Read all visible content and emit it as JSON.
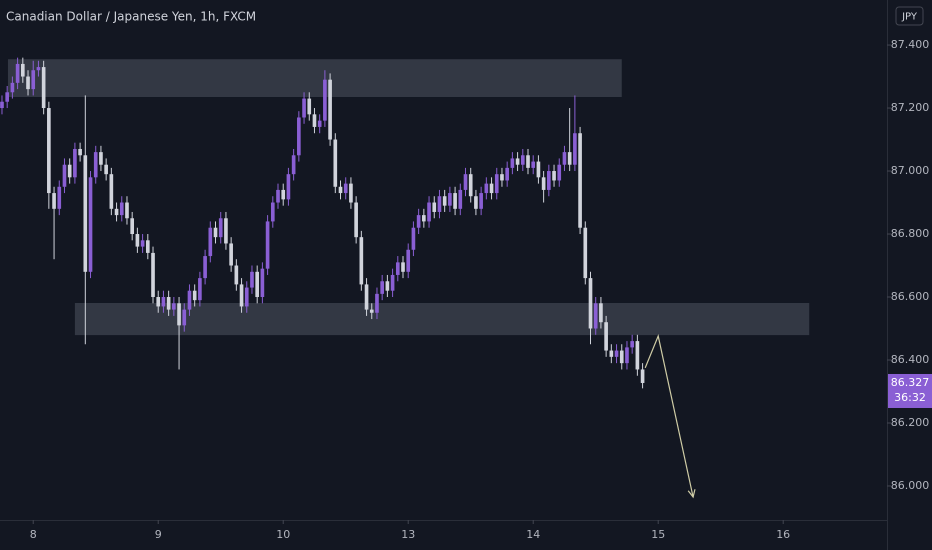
{
  "chart_data": {
    "type": "candlestick",
    "title": "Canadian Dollar / Japanese Yen, 1h, FXCM",
    "currency": "JPY",
    "countdown": "36:32",
    "up_color": "#8a5fd4",
    "down_color": "#d1d4dc",
    "zone_color": "#3a3e4a",
    "arrow_color": "#cfcca6",
    "xlim": [
      -0.38,
      169.93
    ],
    "ylim": [
      85.892,
      87.543
    ],
    "xticks": [
      {
        "value": 6,
        "label": "8"
      },
      {
        "value": 30,
        "label": "9"
      },
      {
        "value": 54,
        "label": "10"
      },
      {
        "value": 78,
        "label": "13"
      },
      {
        "value": 102,
        "label": "14"
      },
      {
        "value": 126,
        "label": "15"
      },
      {
        "value": 150,
        "label": "16"
      }
    ],
    "yticks": [
      {
        "value": 87.4,
        "label": "87.400"
      },
      {
        "value": 87.2,
        "label": "87.200"
      },
      {
        "value": 87.0,
        "label": "87.000"
      },
      {
        "value": 86.8,
        "label": "86.800"
      },
      {
        "value": 86.6,
        "label": "86.600"
      },
      {
        "value": 86.4,
        "label": "86.400"
      },
      {
        "value": 86.2,
        "label": "86.200"
      },
      {
        "value": 86.0,
        "label": "86.000"
      }
    ],
    "zones": [
      {
        "start": 1.15,
        "end": 119,
        "top": 87.355,
        "bottom": 87.235
      },
      {
        "start": 14,
        "end": 155,
        "top": 86.581,
        "bottom": 86.479
      }
    ],
    "arrow": {
      "x": [
        123.5,
        126,
        132.7
      ],
      "y": [
        86.375,
        86.476,
        85.965
      ]
    },
    "candles": [
      [
        87.2,
        87.24,
        87.18,
        87.22
      ],
      [
        87.22,
        87.27,
        87.2,
        87.25
      ],
      [
        87.25,
        87.3,
        87.23,
        87.28
      ],
      [
        87.28,
        87.36,
        87.26,
        87.34
      ],
      [
        87.34,
        87.36,
        87.28,
        87.3
      ],
      [
        87.3,
        87.32,
        87.24,
        87.26
      ],
      [
        87.26,
        87.35,
        87.24,
        87.32
      ],
      [
        87.32,
        87.35,
        87.3,
        87.33
      ],
      [
        87.33,
        87.35,
        87.18,
        87.2
      ],
      [
        87.2,
        87.22,
        86.88,
        86.93
      ],
      [
        86.93,
        86.95,
        86.72,
        86.88
      ],
      [
        86.88,
        86.97,
        86.86,
        86.95
      ],
      [
        86.95,
        87.04,
        86.93,
        87.02
      ],
      [
        87.02,
        87.04,
        86.96,
        86.98
      ],
      [
        86.98,
        87.09,
        86.96,
        87.07
      ],
      [
        87.07,
        87.09,
        87.03,
        87.05
      ],
      [
        87.05,
        87.24,
        86.45,
        86.68
      ],
      [
        86.68,
        87.0,
        86.66,
        86.98
      ],
      [
        86.98,
        87.08,
        86.96,
        87.06
      ],
      [
        87.06,
        87.08,
        87.0,
        87.02
      ],
      [
        87.02,
        87.04,
        86.97,
        86.99
      ],
      [
        86.99,
        87.01,
        86.86,
        86.88
      ],
      [
        86.88,
        86.9,
        86.84,
        86.86
      ],
      [
        86.86,
        86.92,
        86.84,
        86.9
      ],
      [
        86.9,
        86.92,
        86.83,
        86.85
      ],
      [
        86.85,
        86.87,
        86.78,
        86.8
      ],
      [
        86.8,
        86.82,
        86.74,
        86.76
      ],
      [
        86.76,
        86.8,
        86.74,
        86.78
      ],
      [
        86.78,
        86.8,
        86.72,
        86.74
      ],
      [
        86.74,
        86.76,
        86.58,
        86.6
      ],
      [
        86.6,
        86.62,
        86.55,
        86.57
      ],
      [
        86.57,
        86.62,
        86.55,
        86.6
      ],
      [
        86.6,
        86.62,
        86.54,
        86.56
      ],
      [
        86.56,
        86.6,
        86.54,
        86.58
      ],
      [
        86.58,
        86.6,
        86.37,
        86.51
      ],
      [
        86.51,
        86.58,
        86.49,
        86.56
      ],
      [
        86.56,
        86.64,
        86.54,
        86.62
      ],
      [
        86.62,
        86.64,
        86.57,
        86.59
      ],
      [
        86.59,
        86.68,
        86.57,
        86.66
      ],
      [
        86.66,
        86.75,
        86.64,
        86.73
      ],
      [
        86.73,
        86.84,
        86.71,
        86.82
      ],
      [
        86.82,
        86.84,
        86.77,
        86.79
      ],
      [
        86.79,
        86.87,
        86.77,
        86.85
      ],
      [
        86.85,
        86.87,
        86.75,
        86.77
      ],
      [
        86.77,
        86.79,
        86.68,
        86.7
      ],
      [
        86.7,
        86.72,
        86.62,
        86.64
      ],
      [
        86.64,
        86.66,
        86.55,
        86.57
      ],
      [
        86.57,
        86.65,
        86.55,
        86.63
      ],
      [
        86.63,
        86.7,
        86.61,
        86.68
      ],
      [
        86.68,
        86.7,
        86.58,
        86.6
      ],
      [
        86.6,
        86.71,
        86.58,
        86.69
      ],
      [
        86.69,
        86.86,
        86.67,
        86.84
      ],
      [
        86.84,
        86.92,
        86.82,
        86.9
      ],
      [
        86.9,
        86.96,
        86.88,
        86.94
      ],
      [
        86.94,
        86.96,
        86.89,
        86.91
      ],
      [
        86.91,
        87.01,
        86.89,
        86.99
      ],
      [
        86.99,
        87.07,
        86.97,
        87.05
      ],
      [
        87.05,
        87.19,
        87.03,
        87.17
      ],
      [
        87.17,
        87.25,
        87.15,
        87.23
      ],
      [
        87.23,
        87.25,
        87.16,
        87.18
      ],
      [
        87.18,
        87.2,
        87.12,
        87.14
      ],
      [
        87.14,
        87.18,
        87.12,
        87.16
      ],
      [
        87.16,
        87.32,
        87.14,
        87.29
      ],
      [
        87.29,
        87.31,
        87.08,
        87.1
      ],
      [
        87.1,
        87.12,
        86.93,
        86.95
      ],
      [
        86.95,
        86.97,
        86.91,
        86.93
      ],
      [
        86.93,
        86.98,
        86.91,
        86.96
      ],
      [
        86.96,
        86.98,
        86.88,
        86.9
      ],
      [
        86.9,
        86.92,
        86.77,
        86.79
      ],
      [
        86.79,
        86.81,
        86.62,
        86.64
      ],
      [
        86.64,
        86.66,
        86.54,
        86.56
      ],
      [
        86.56,
        86.58,
        86.53,
        86.55
      ],
      [
        86.55,
        86.63,
        86.53,
        86.61
      ],
      [
        86.61,
        86.67,
        86.59,
        86.65
      ],
      [
        86.65,
        86.67,
        86.6,
        86.62
      ],
      [
        86.62,
        86.69,
        86.6,
        86.67
      ],
      [
        86.67,
        86.73,
        86.65,
        86.71
      ],
      [
        86.71,
        86.73,
        86.66,
        86.68
      ],
      [
        86.68,
        86.77,
        86.66,
        86.75
      ],
      [
        86.75,
        86.84,
        86.73,
        86.82
      ],
      [
        86.82,
        86.88,
        86.8,
        86.86
      ],
      [
        86.86,
        86.88,
        86.82,
        86.84
      ],
      [
        86.84,
        86.92,
        86.82,
        86.9
      ],
      [
        86.9,
        86.92,
        86.85,
        86.87
      ],
      [
        86.87,
        86.94,
        86.85,
        86.92
      ],
      [
        86.92,
        86.94,
        86.87,
        86.89
      ],
      [
        86.89,
        86.95,
        86.87,
        86.93
      ],
      [
        86.93,
        86.95,
        86.86,
        86.88
      ],
      [
        86.88,
        86.96,
        86.86,
        86.94
      ],
      [
        86.94,
        87.01,
        86.92,
        86.99
      ],
      [
        86.99,
        87.01,
        86.9,
        86.92
      ],
      [
        86.92,
        86.94,
        86.86,
        86.88
      ],
      [
        86.88,
        86.95,
        86.86,
        86.93
      ],
      [
        86.93,
        86.98,
        86.91,
        86.96
      ],
      [
        86.96,
        86.98,
        86.91,
        86.93
      ],
      [
        86.93,
        87.01,
        86.91,
        86.99
      ],
      [
        86.99,
        87.01,
        86.95,
        86.97
      ],
      [
        86.97,
        87.03,
        86.95,
        87.01
      ],
      [
        87.01,
        87.06,
        86.99,
        87.04
      ],
      [
        87.04,
        87.06,
        87.0,
        87.02
      ],
      [
        87.02,
        87.07,
        87.0,
        87.05
      ],
      [
        87.05,
        87.07,
        86.99,
        87.01
      ],
      [
        87.01,
        87.05,
        86.99,
        87.03
      ],
      [
        87.03,
        87.05,
        86.96,
        86.98
      ],
      [
        86.98,
        87.0,
        86.9,
        86.94
      ],
      [
        86.94,
        87.02,
        86.92,
        87.0
      ],
      [
        87.0,
        87.02,
        86.95,
        86.97
      ],
      [
        86.97,
        87.04,
        86.95,
        87.02
      ],
      [
        87.02,
        87.08,
        87.0,
        87.06
      ],
      [
        87.06,
        87.2,
        87.0,
        87.02
      ],
      [
        87.02,
        87.24,
        87.0,
        87.12
      ],
      [
        87.12,
        87.14,
        86.8,
        86.82
      ],
      [
        86.82,
        86.84,
        86.64,
        86.66
      ],
      [
        86.66,
        86.68,
        86.45,
        86.5
      ],
      [
        86.5,
        86.6,
        86.48,
        86.58
      ],
      [
        86.58,
        86.6,
        86.5,
        86.52
      ],
      [
        86.52,
        86.54,
        86.41,
        86.43
      ],
      [
        86.43,
        86.45,
        86.39,
        86.41
      ],
      [
        86.41,
        86.45,
        86.39,
        86.43
      ],
      [
        86.43,
        86.45,
        86.37,
        86.39
      ],
      [
        86.39,
        86.46,
        86.37,
        86.44
      ],
      [
        86.44,
        86.48,
        86.42,
        86.46
      ],
      [
        86.46,
        86.48,
        86.35,
        86.37
      ],
      [
        86.37,
        86.39,
        86.31,
        86.327
      ]
    ]
  }
}
